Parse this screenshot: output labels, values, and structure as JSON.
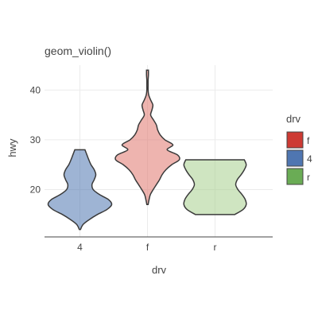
{
  "chart_data": {
    "type": "violin",
    "title": "geom_violin()",
    "xlabel": "drv",
    "ylabel": "hwy",
    "categories": [
      "4",
      "f",
      "r"
    ],
    "ylim": [
      10.5,
      45
    ],
    "yticks": [
      20,
      30,
      40
    ],
    "grid": true,
    "legend": {
      "title": "drv",
      "placement": "right",
      "entries": [
        {
          "label": "f",
          "color": "#cd3a33"
        },
        {
          "label": "4",
          "color": "#4f76b1"
        },
        {
          "label": "r",
          "color": "#6aac55"
        }
      ]
    },
    "series": [
      {
        "category": "4",
        "color": "#4f76b1",
        "ymin": 12,
        "ymax": 28,
        "density": [
          [
            12,
            0.02
          ],
          [
            13,
            0.1
          ],
          [
            14,
            0.3
          ],
          [
            15,
            0.55
          ],
          [
            16,
            0.85
          ],
          [
            17,
            1.0
          ],
          [
            18,
            0.9
          ],
          [
            19,
            0.62
          ],
          [
            20,
            0.42
          ],
          [
            21,
            0.38
          ],
          [
            22,
            0.45
          ],
          [
            23,
            0.5
          ],
          [
            24,
            0.45
          ],
          [
            25,
            0.35
          ],
          [
            26,
            0.28
          ],
          [
            27,
            0.22
          ],
          [
            28,
            0.16
          ]
        ]
      },
      {
        "category": "f",
        "color": "#e0766d",
        "ymin": 17,
        "ymax": 44,
        "density": [
          [
            17,
            0.02
          ],
          [
            18,
            0.05
          ],
          [
            19,
            0.09
          ],
          [
            20,
            0.18
          ],
          [
            21,
            0.28
          ],
          [
            22,
            0.38
          ],
          [
            23,
            0.46
          ],
          [
            24,
            0.58
          ],
          [
            25,
            0.76
          ],
          [
            26,
            1.0
          ],
          [
            27,
            0.94
          ],
          [
            28,
            0.62
          ],
          [
            29,
            0.8
          ],
          [
            30,
            0.55
          ],
          [
            31,
            0.4
          ],
          [
            32,
            0.32
          ],
          [
            33,
            0.28
          ],
          [
            34,
            0.19
          ],
          [
            35,
            0.1
          ],
          [
            36,
            0.14
          ],
          [
            37,
            0.17
          ],
          [
            38,
            0.1
          ],
          [
            39,
            0.04
          ],
          [
            40,
            0.02
          ],
          [
            41,
            0.02
          ],
          [
            42,
            0.02
          ],
          [
            43,
            0.03
          ],
          [
            44,
            0.03
          ]
        ]
      },
      {
        "category": "r",
        "color": "#a8d08e",
        "ymin": 15,
        "ymax": 26,
        "density": [
          [
            15,
            0.62
          ],
          [
            16,
            0.88
          ],
          [
            17,
            0.98
          ],
          [
            18,
            0.95
          ],
          [
            19,
            0.85
          ],
          [
            20,
            0.72
          ],
          [
            21,
            0.65
          ],
          [
            22,
            0.7
          ],
          [
            23,
            0.82
          ],
          [
            24,
            0.92
          ],
          [
            25,
            0.98
          ],
          [
            26,
            0.92
          ]
        ]
      }
    ]
  }
}
